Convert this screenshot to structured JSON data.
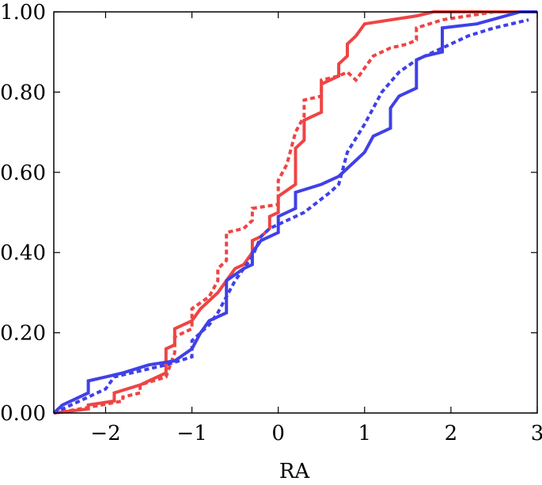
{
  "chart_data": {
    "type": "line",
    "title": "",
    "xlabel": "RA",
    "ylabel": "",
    "xlim": [
      -2.6,
      3.0
    ],
    "ylim": [
      0.0,
      1.0
    ],
    "grid": false,
    "x_ticks": [
      {
        "value": -2,
        "label": "−2"
      },
      {
        "value": -1,
        "label": "−1"
      },
      {
        "value": 0,
        "label": "0"
      },
      {
        "value": 1,
        "label": "1"
      },
      {
        "value": 2,
        "label": "2"
      },
      {
        "value": 3,
        "label": "3"
      }
    ],
    "y_ticks": [
      {
        "value": 0.0,
        "label": "0.00"
      },
      {
        "value": 0.2,
        "label": "0.20"
      },
      {
        "value": 0.4,
        "label": "0.40"
      },
      {
        "value": 0.6,
        "label": "0.60"
      },
      {
        "value": 0.8,
        "label": "0.80"
      },
      {
        "value": 1.0,
        "label": "1.00"
      }
    ],
    "series": [
      {
        "name": "red-solid",
        "color": "#ef4444",
        "dash": "solid",
        "points": [
          [
            -2.6,
            0.0
          ],
          [
            -2.2,
            0.01
          ],
          [
            -2.2,
            0.02
          ],
          [
            -1.9,
            0.03
          ],
          [
            -1.9,
            0.05
          ],
          [
            -1.6,
            0.07
          ],
          [
            -1.5,
            0.08
          ],
          [
            -1.3,
            0.1
          ],
          [
            -1.3,
            0.16
          ],
          [
            -1.2,
            0.17
          ],
          [
            -1.2,
            0.21
          ],
          [
            -1.0,
            0.23
          ],
          [
            -0.9,
            0.26
          ],
          [
            -0.8,
            0.28
          ],
          [
            -0.7,
            0.3
          ],
          [
            -0.6,
            0.33
          ],
          [
            -0.5,
            0.36
          ],
          [
            -0.4,
            0.37
          ],
          [
            -0.3,
            0.4
          ],
          [
            -0.3,
            0.43
          ],
          [
            -0.2,
            0.44
          ],
          [
            -0.1,
            0.46
          ],
          [
            -0.1,
            0.49
          ],
          [
            0.0,
            0.5
          ],
          [
            0.0,
            0.54
          ],
          [
            0.2,
            0.57
          ],
          [
            0.2,
            0.66
          ],
          [
            0.3,
            0.68
          ],
          [
            0.3,
            0.73
          ],
          [
            0.5,
            0.75
          ],
          [
            0.5,
            0.82
          ],
          [
            0.7,
            0.84
          ],
          [
            0.7,
            0.87
          ],
          [
            0.8,
            0.89
          ],
          [
            0.8,
            0.92
          ],
          [
            0.9,
            0.94
          ],
          [
            1.0,
            0.97
          ],
          [
            1.6,
            0.99
          ],
          [
            1.8,
            1.0
          ],
          [
            3.0,
            1.0
          ]
        ]
      },
      {
        "name": "red-dotted",
        "color": "#ef4444",
        "dash": "dotted",
        "points": [
          [
            -2.6,
            0.0
          ],
          [
            -2.3,
            0.01
          ],
          [
            -1.8,
            0.03
          ],
          [
            -1.8,
            0.04
          ],
          [
            -1.6,
            0.05
          ],
          [
            -1.6,
            0.07
          ],
          [
            -1.3,
            0.09
          ],
          [
            -1.2,
            0.15
          ],
          [
            -1.2,
            0.19
          ],
          [
            -1.0,
            0.21
          ],
          [
            -1.0,
            0.26
          ],
          [
            -0.8,
            0.29
          ],
          [
            -0.7,
            0.33
          ],
          [
            -0.7,
            0.36
          ],
          [
            -0.6,
            0.38
          ],
          [
            -0.6,
            0.45
          ],
          [
            -0.4,
            0.46
          ],
          [
            -0.3,
            0.48
          ],
          [
            -0.3,
            0.51
          ],
          [
            0.0,
            0.52
          ],
          [
            0.0,
            0.58
          ],
          [
            0.1,
            0.62
          ],
          [
            0.2,
            0.7
          ],
          [
            0.3,
            0.74
          ],
          [
            0.3,
            0.78
          ],
          [
            0.5,
            0.79
          ],
          [
            0.5,
            0.83
          ],
          [
            0.7,
            0.84
          ],
          [
            0.8,
            0.85
          ],
          [
            0.9,
            0.83
          ],
          [
            1.0,
            0.86
          ],
          [
            1.1,
            0.89
          ],
          [
            1.3,
            0.91
          ],
          [
            1.5,
            0.92
          ],
          [
            1.6,
            0.93
          ],
          [
            1.6,
            0.96
          ],
          [
            1.9,
            0.98
          ],
          [
            2.5,
            1.0
          ],
          [
            3.0,
            1.0
          ]
        ]
      },
      {
        "name": "blue-solid",
        "color": "#4040e8",
        "dash": "solid",
        "points": [
          [
            -2.6,
            0.0
          ],
          [
            -2.5,
            0.02
          ],
          [
            -2.2,
            0.05
          ],
          [
            -2.2,
            0.08
          ],
          [
            -2.0,
            0.09
          ],
          [
            -1.8,
            0.1
          ],
          [
            -1.5,
            0.12
          ],
          [
            -1.2,
            0.13
          ],
          [
            -1.0,
            0.16
          ],
          [
            -0.9,
            0.2
          ],
          [
            -0.8,
            0.23
          ],
          [
            -0.6,
            0.25
          ],
          [
            -0.6,
            0.33
          ],
          [
            -0.4,
            0.36
          ],
          [
            -0.3,
            0.37
          ],
          [
            -0.3,
            0.4
          ],
          [
            -0.2,
            0.43
          ],
          [
            0.0,
            0.45
          ],
          [
            0.0,
            0.49
          ],
          [
            0.2,
            0.51
          ],
          [
            0.2,
            0.55
          ],
          [
            0.5,
            0.57
          ],
          [
            0.7,
            0.59
          ],
          [
            0.9,
            0.63
          ],
          [
            1.0,
            0.65
          ],
          [
            1.1,
            0.69
          ],
          [
            1.3,
            0.71
          ],
          [
            1.3,
            0.76
          ],
          [
            1.4,
            0.79
          ],
          [
            1.6,
            0.81
          ],
          [
            1.6,
            0.88
          ],
          [
            1.7,
            0.89
          ],
          [
            1.9,
            0.9
          ],
          [
            1.9,
            0.96
          ],
          [
            2.3,
            0.97
          ],
          [
            2.8,
            1.0
          ],
          [
            3.0,
            1.0
          ]
        ]
      },
      {
        "name": "blue-dotted",
        "color": "#4040e8",
        "dash": "dotted",
        "points": [
          [
            -2.6,
            0.0
          ],
          [
            -2.0,
            0.06
          ],
          [
            -1.9,
            0.09
          ],
          [
            -1.7,
            0.1
          ],
          [
            -1.3,
            0.12
          ],
          [
            -1.0,
            0.14
          ],
          [
            -1.0,
            0.18
          ],
          [
            -0.8,
            0.22
          ],
          [
            -0.7,
            0.25
          ],
          [
            -0.6,
            0.29
          ],
          [
            -0.5,
            0.33
          ],
          [
            -0.4,
            0.36
          ],
          [
            -0.3,
            0.39
          ],
          [
            -0.2,
            0.44
          ],
          [
            -0.1,
            0.46
          ],
          [
            0.0,
            0.47
          ],
          [
            0.3,
            0.5
          ],
          [
            0.6,
            0.55
          ],
          [
            0.7,
            0.57
          ],
          [
            0.8,
            0.65
          ],
          [
            1.0,
            0.72
          ],
          [
            1.2,
            0.8
          ],
          [
            1.4,
            0.85
          ],
          [
            1.6,
            0.88
          ],
          [
            1.8,
            0.9
          ],
          [
            2.0,
            0.92
          ],
          [
            2.2,
            0.94
          ],
          [
            2.5,
            0.96
          ],
          [
            2.9,
            0.98
          ]
        ]
      }
    ]
  }
}
